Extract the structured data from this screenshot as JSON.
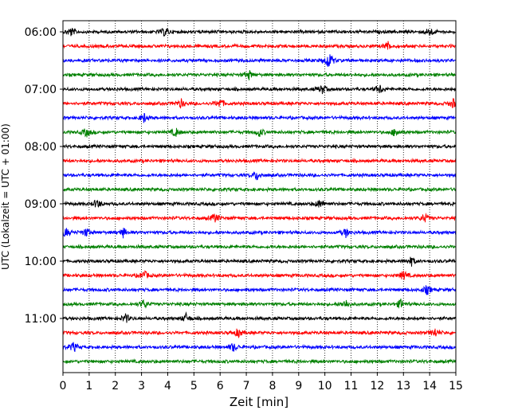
{
  "chart_data": {
    "type": "line",
    "title": "",
    "xlabel": "Zeit  [min]",
    "ylabel": "UTC (Lokalzeit = UTC + 01:00)",
    "xlim": [
      0,
      15
    ],
    "x_ticks": [
      0,
      1,
      2,
      3,
      4,
      5,
      6,
      7,
      8,
      9,
      10,
      11,
      12,
      13,
      14,
      15
    ],
    "y_tick_labels": [
      "06:00",
      "07:00",
      "08:00",
      "09:00",
      "10:00",
      "11:00"
    ],
    "trace_interval_minutes": 15,
    "start_time": "06:00",
    "grid": "vertical dotted lines at each minute",
    "trace_colors": [
      "#000000",
      "#ff0000",
      "#0000ff",
      "#008000"
    ],
    "traces": [
      {
        "time": "06:00",
        "color": "black",
        "events_min": [
          0.3,
          3.9,
          14.0
        ]
      },
      {
        "time": "06:15",
        "color": "red",
        "events_min": [
          12.4
        ]
      },
      {
        "time": "06:30",
        "color": "blue",
        "events_min": [
          10.1,
          10.2
        ]
      },
      {
        "time": "06:45",
        "color": "green",
        "events_min": [
          7.1
        ]
      },
      {
        "time": "07:00",
        "color": "black",
        "events_min": [
          9.9,
          12.1
        ]
      },
      {
        "time": "07:15",
        "color": "red",
        "events_min": [
          4.5,
          6.0,
          14.9
        ]
      },
      {
        "time": "07:30",
        "color": "blue",
        "events_min": [
          3.1
        ]
      },
      {
        "time": "07:45",
        "color": "green",
        "events_min": [
          0.9,
          4.3,
          7.5,
          12.7
        ]
      },
      {
        "time": "08:00",
        "color": "black",
        "events_min": []
      },
      {
        "time": "08:15",
        "color": "red",
        "events_min": []
      },
      {
        "time": "08:30",
        "color": "blue",
        "events_min": [
          7.4
        ]
      },
      {
        "time": "08:45",
        "color": "green",
        "events_min": []
      },
      {
        "time": "09:00",
        "color": "black",
        "events_min": [
          1.3,
          9.8
        ]
      },
      {
        "time": "09:15",
        "color": "red",
        "events_min": [
          5.8,
          13.8
        ]
      },
      {
        "time": "09:30",
        "color": "blue",
        "events_min": [
          0.1,
          0.9,
          2.3,
          10.8
        ]
      },
      {
        "time": "09:45",
        "color": "green",
        "events_min": []
      },
      {
        "time": "10:00",
        "color": "black",
        "events_min": [
          13.3
        ]
      },
      {
        "time": "10:15",
        "color": "red",
        "events_min": [
          3.1,
          13.0
        ]
      },
      {
        "time": "10:30",
        "color": "blue",
        "events_min": [
          13.9
        ]
      },
      {
        "time": "10:45",
        "color": "green",
        "events_min": [
          10.8,
          12.9,
          3.1
        ]
      },
      {
        "time": "11:00",
        "color": "black",
        "events_min": [
          2.4,
          4.7
        ]
      },
      {
        "time": "11:15",
        "color": "red",
        "events_min": [
          6.7,
          14.2
        ]
      },
      {
        "time": "11:30",
        "color": "blue",
        "events_min": [
          0.4,
          6.5
        ]
      },
      {
        "time": "11:45",
        "color": "green",
        "events_min": []
      }
    ]
  }
}
